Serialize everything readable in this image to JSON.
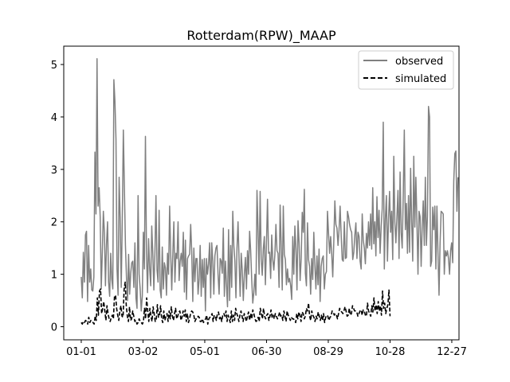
{
  "chart_data": {
    "type": "line",
    "title": "Rotterdam(RPW)_MAAP",
    "xlabel": "",
    "ylabel": "",
    "x_ticks": [
      "01-01",
      "03-02",
      "05-01",
      "06-30",
      "08-29",
      "10-28",
      "12-27"
    ],
    "x_tick_days": [
      0,
      60,
      120,
      180,
      240,
      300,
      360
    ],
    "xlim": [
      -17,
      367
    ],
    "ylim": [
      -0.25,
      5.35
    ],
    "y_ticks": [
      0,
      1,
      2,
      3,
      4,
      5
    ],
    "grid": false,
    "legend_position": "top-right",
    "series": [
      {
        "name": "observed",
        "color": "#808080",
        "dash": "solid",
        "x_day_start": 0,
        "x_day_end": 366,
        "values": [
          0.95,
          0.55,
          1.42,
          0.85,
          1.75,
          1.82,
          0.48,
          1.55,
          0.85,
          1.1,
          0.7,
          0.68,
          0.95,
          3.33,
          2.15,
          5.11,
          2.3,
          2.65,
          2.1,
          0.72,
          1.42,
          2.2,
          1.8,
          0.78,
          1.58,
          2.0,
          0.85,
          0.58,
          1.4,
          0.9,
          0.72,
          4.71,
          4.3,
          3.58,
          1.1,
          0.6,
          2.85,
          2.05,
          0.75,
          2.05,
          3.75,
          2.65,
          1.55,
          0.92,
          0.5,
          1.38,
          0.62,
          1.02,
          1.22,
          1.25,
          0.75,
          1.6,
          0.55,
          0.35,
          2.5,
          1.0,
          0.72,
          0.3,
          0.58,
          1.8,
          1.1,
          3.63,
          1.4,
          0.65,
          1.68,
          1.12,
          0.78,
          1.92,
          1.4,
          0.7,
          1.4,
          2.5,
          1.08,
          0.85,
          2.22,
          0.7,
          0.55,
          1.52,
          0.72,
          1.22,
          1.12,
          0.6,
          1.4,
          1.0,
          2.3,
          1.4,
          0.7,
          1.38,
          2.0,
          0.85,
          1.4,
          1.3,
          2.0,
          0.88,
          1.25,
          1.4,
          1.15,
          1.8,
          0.66,
          1.65,
          0.52,
          1.3,
          1.35,
          1.38,
          1.95,
          1.42,
          0.48,
          1.5,
          0.86,
          1.3,
          1.3,
          0.62,
          0.9,
          1.55,
          0.58,
          1.28,
          0.75,
          1.3,
          0.3,
          1.3,
          1.0,
          1.2,
          1.6,
          0.55,
          1.6,
          1.25,
          0.62,
          1.35,
          1.5,
          1.55,
          1.0,
          0.62,
          1.3,
          1.25,
          1.02,
          1.88,
          0.58,
          1.25,
          0.8,
          0.38,
          1.85,
          0.5,
          1.55,
          0.75,
          2.2,
          1.55,
          1.25,
          0.55,
          1.5,
          2.0,
          1.25,
          0.58,
          1.4,
          1.08,
          0.5,
          1.0,
          1.32,
          0.72,
          1.45,
          1.0,
          1.82,
          1.45,
          0.9,
          0.45,
          0.65,
          1.0,
          0.6,
          2.6,
          1.85,
          1.0,
          2.58,
          1.3,
          0.98,
          1.48,
          1.72,
          0.8,
          1.58,
          2.43,
          1.4,
          1.42,
          0.92,
          1.75,
          1.28,
          1.08,
          1.38,
          1.95,
          1.45,
          1.4,
          0.75,
          2.32,
          1.55,
          0.7,
          2.3,
          1.38,
          1.28,
          0.8,
          1.1,
          0.85,
          0.92,
          0.78,
          0.52,
          1.72,
          1.0,
          1.92,
          1.48,
          0.7,
          2.02,
          1.6,
          0.88,
          1.3,
          2.18,
          1.8,
          2.62,
          1.02,
          0.78,
          1.98,
          1.28,
          1.15,
          0.62,
          1.3,
          0.9,
          1.8,
          1.18,
          0.72,
          1.35,
          0.8,
          1.48,
          0.48,
          1.15,
          1.3,
          1.35,
          0.72,
          1.0,
          1.05,
          2.2,
          1.78,
          1.4,
          1.72,
          1.4,
          0.95,
          1.62,
          2.4,
          1.95,
          1.88,
          1.55,
          1.85,
          2.3,
          1.75,
          1.28,
          1.25,
          2.0,
          1.3,
          1.32,
          2.2,
          2.1,
          1.95,
          1.85,
          1.8,
          1.28,
          1.42,
          1.75,
          1.98,
          1.3,
          1.8,
          1.72,
          1.25,
          1.1,
          2.15,
          1.65,
          1.5,
          1.2,
          1.78,
          1.5,
          2.0,
          1.55,
          2.15,
          1.48,
          2.65,
          1.58,
          2.0,
          1.35,
          2.48,
          1.7,
          2.22,
          1.4,
          1.9,
          2.25,
          3.9,
          1.1,
          2.05,
          2.5,
          1.25,
          2.05,
          2.58,
          1.8,
          2.2,
          1.28,
          3.25,
          2.0,
          1.6,
          2.1,
          2.6,
          1.3,
          2.95,
          1.8,
          1.5,
          2.5,
          3.75,
          1.85,
          2.35,
          1.4,
          2.5,
          1.42,
          3.02,
          2.0,
          1.25,
          3.25,
          1.9,
          2.85,
          2.0,
          1.0,
          2.2,
          2.1,
          1.15,
          1.9,
          2.4,
          1.55,
          2.85,
          1.55,
          2.1,
          4.2,
          4.0,
          1.15,
          1.25,
          2.28,
          1.85,
          2.3,
          1.1,
          2.3,
          1.4,
          0.6,
          1.6,
          2.2,
          2.18,
          2.15,
          1.0,
          1.45,
          1.35,
          1.45,
          1.3,
          1.0,
          1.45,
          1.6,
          1.22,
          2.78,
          3.3,
          3.35,
          2.2,
          2.85
        ]
      },
      {
        "name": "simulated",
        "color": "#000000",
        "dash": "dashed",
        "x_day_start": 0,
        "x_day_end": 300,
        "values": [
          0.08,
          0.05,
          0.1,
          0.08,
          0.12,
          0.1,
          0.05,
          0.18,
          0.08,
          0.12,
          0.1,
          0.08,
          0.05,
          0.2,
          0.12,
          0.55,
          0.22,
          0.68,
          0.72,
          0.25,
          0.35,
          0.48,
          0.3,
          0.12,
          0.4,
          0.25,
          0.15,
          0.1,
          0.18,
          0.22,
          0.15,
          0.58,
          0.6,
          0.35,
          0.22,
          0.12,
          0.3,
          0.4,
          0.2,
          0.18,
          0.72,
          0.85,
          0.4,
          0.2,
          0.1,
          0.38,
          0.12,
          0.15,
          0.3,
          0.2,
          0.1,
          0.12,
          0.05,
          0.08,
          0.15,
          0.1,
          0.08,
          0.05,
          0.1,
          0.35,
          0.15,
          0.55,
          0.3,
          0.1,
          0.35,
          0.2,
          0.1,
          0.38,
          0.25,
          0.1,
          0.15,
          0.42,
          0.18,
          0.22,
          0.4,
          0.15,
          0.08,
          0.3,
          0.12,
          0.2,
          0.25,
          0.1,
          0.3,
          0.15,
          0.38,
          0.2,
          0.12,
          0.25,
          0.35,
          0.15,
          0.2,
          0.28,
          0.3,
          0.12,
          0.18,
          0.3,
          0.2,
          0.32,
          0.1,
          0.25,
          0.08,
          0.15,
          0.25,
          0.3,
          0.28,
          0.22,
          0.1,
          0.15,
          0.15,
          0.2,
          0.18,
          0.1,
          0.1,
          0.15,
          0.08,
          0.12,
          0.15,
          0.22,
          0.05,
          0.15,
          0.18,
          0.2,
          0.25,
          0.1,
          0.22,
          0.2,
          0.12,
          0.25,
          0.28,
          0.15,
          0.2,
          0.1,
          0.22,
          0.25,
          0.2,
          0.3,
          0.1,
          0.22,
          0.15,
          0.08,
          0.3,
          0.1,
          0.22,
          0.12,
          0.35,
          0.25,
          0.2,
          0.1,
          0.22,
          0.3,
          0.2,
          0.1,
          0.25,
          0.18,
          0.1,
          0.2,
          0.28,
          0.12,
          0.25,
          0.15,
          0.32,
          0.25,
          0.15,
          0.1,
          0.12,
          0.18,
          0.1,
          0.35,
          0.25,
          0.15,
          0.35,
          0.2,
          0.15,
          0.22,
          0.25,
          0.12,
          0.2,
          0.32,
          0.18,
          0.22,
          0.15,
          0.25,
          0.2,
          0.15,
          0.2,
          0.28,
          0.2,
          0.22,
          0.12,
          0.3,
          0.2,
          0.1,
          0.3,
          0.22,
          0.18,
          0.12,
          0.18,
          0.15,
          0.15,
          0.12,
          0.08,
          0.25,
          0.15,
          0.28,
          0.22,
          0.1,
          0.28,
          0.25,
          0.15,
          0.2,
          0.35,
          0.3,
          0.45,
          0.2,
          0.12,
          0.3,
          0.22,
          0.18,
          0.1,
          0.2,
          0.15,
          0.28,
          0.2,
          0.12,
          0.22,
          0.12,
          0.25,
          0.08,
          0.18,
          0.22,
          0.2,
          0.12,
          0.18,
          0.2,
          0.3,
          0.28,
          0.22,
          0.25,
          0.22,
          0.15,
          0.25,
          0.35,
          0.3,
          0.28,
          0.25,
          0.3,
          0.38,
          0.3,
          0.2,
          0.22,
          0.35,
          0.22,
          0.25,
          0.4,
          0.35,
          0.3,
          0.3,
          0.28,
          0.2,
          0.25,
          0.3,
          0.32,
          0.22,
          0.32,
          0.3,
          0.22,
          0.2,
          0.45,
          0.3,
          0.25,
          0.2,
          0.4,
          0.28,
          0.55,
          0.3,
          0.42,
          0.25,
          0.48,
          0.3,
          0.4,
          0.22,
          0.68,
          0.35,
          0.45,
          0.25,
          0.35,
          0.42,
          0.7,
          0.2
        ]
      }
    ]
  }
}
